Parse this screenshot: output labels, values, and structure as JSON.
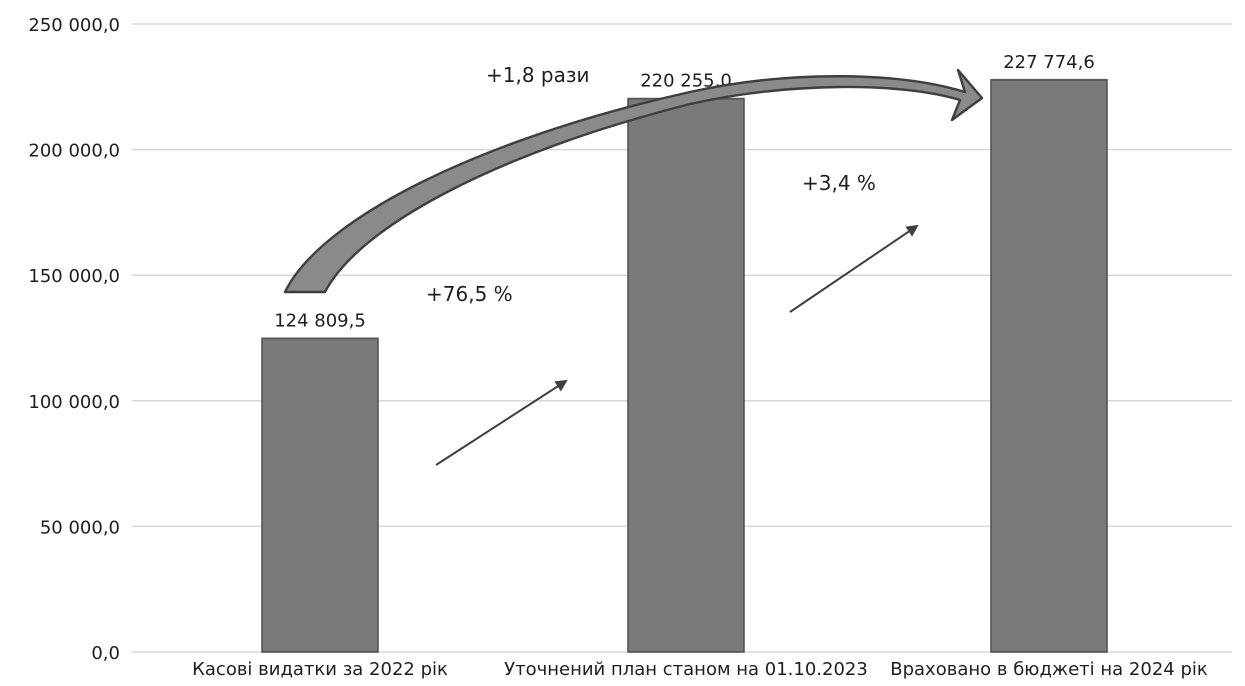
{
  "chart_data": {
    "type": "bar",
    "categories": [
      "Касові видатки за 2022 рік",
      "Уточнений план станом на 01.10.2023",
      "Враховано в бюджеті на 2024 рік"
    ],
    "values": [
      124809.5,
      220255.0,
      227774.6
    ],
    "data_labels": [
      "124 809,5",
      "220 255,0",
      "227 774,6"
    ],
    "ylim": [
      0,
      250000
    ],
    "y_ticks": [
      0,
      50000,
      100000,
      150000,
      200000,
      250000
    ],
    "y_tick_labels": [
      "0,0",
      "50 000,0",
      "100 000,0",
      "150 000,0",
      "200 000,0",
      "250 000,0"
    ],
    "grid": true,
    "annotations": [
      {
        "id": "growth-1-2",
        "text": "+76,5 %"
      },
      {
        "id": "growth-2-3",
        "text": "+3,4 %"
      },
      {
        "id": "growth-1-3",
        "text": "+1,8 рази"
      }
    ],
    "colors": {
      "bar": "#7a7a7a",
      "bar_edge": "#4d4d4d",
      "grid": "#d9d9d9",
      "arrow_fill": "#8a8a8a",
      "arrow_stroke": "#3f3f3f"
    }
  }
}
